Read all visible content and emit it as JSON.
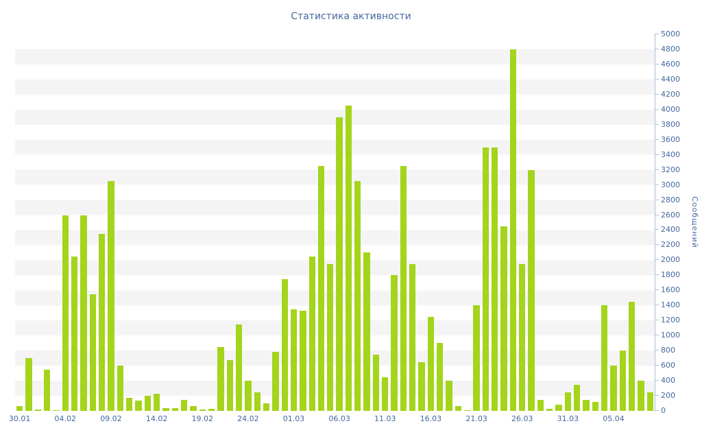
{
  "title": "Статистика активности",
  "chart_data": {
    "type": "bar",
    "title": "Статистика активности",
    "xlabel": "",
    "ylabel": "Сообщений",
    "ylim": [
      0,
      5000
    ],
    "y_tick_step": 200,
    "grid": "horizontal-stripes",
    "legend_position": "none",
    "bar_color": "#a4d41c",
    "stripe_color": "#f4f4f5",
    "label_color": "#44689d",
    "axis_color": "#a9c0d8",
    "x_tick_every": 5,
    "x_tick_labels": [
      "30.01",
      "04.02",
      "09.02",
      "14.02",
      "19.02",
      "24.02",
      "01.03",
      "06.03",
      "11.03",
      "16.03",
      "21.03",
      "26.03",
      "31.03",
      "05.04"
    ],
    "categories": [
      "30.01",
      "31.01",
      "01.02",
      "02.02",
      "03.02",
      "04.02",
      "05.02",
      "06.02",
      "07.02",
      "08.02",
      "09.02",
      "10.02",
      "11.02",
      "12.02",
      "13.02",
      "14.02",
      "15.02",
      "16.02",
      "17.02",
      "18.02",
      "19.02",
      "20.02",
      "21.02",
      "22.02",
      "23.02",
      "24.02",
      "25.02",
      "26.02",
      "27.02",
      "28.02",
      "01.03",
      "02.03",
      "03.03",
      "04.03",
      "05.03",
      "06.03",
      "07.03",
      "08.03",
      "09.03",
      "10.03",
      "11.03",
      "12.03",
      "13.03",
      "14.03",
      "15.03",
      "16.03",
      "17.03",
      "18.03",
      "19.03",
      "20.03",
      "21.03",
      "22.03",
      "23.03",
      "24.03",
      "25.03",
      "26.03",
      "27.03",
      "28.03",
      "29.03",
      "30.03",
      "31.03",
      "01.04",
      "02.04",
      "03.04",
      "04.04",
      "05.04",
      "06.04",
      "07.04",
      "08.04",
      "09.04"
    ],
    "values": [
      60,
      700,
      20,
      550,
      10,
      2600,
      2050,
      2600,
      1550,
      2350,
      3050,
      600,
      170,
      140,
      200,
      230,
      40,
      40,
      150,
      60,
      20,
      30,
      850,
      670,
      1150,
      400,
      250,
      100,
      780,
      1750,
      1350,
      1330,
      2050,
      3250,
      1950,
      3900,
      4050,
      3050,
      2100,
      750,
      450,
      1800,
      3250,
      1950,
      650,
      1250,
      900,
      400,
      60,
      10,
      1400,
      3500,
      3500,
      2450,
      4800,
      1950,
      3200,
      150,
      30,
      80,
      250,
      350,
      150,
      120,
      1400,
      600,
      800,
      1450,
      400,
      250
    ]
  }
}
